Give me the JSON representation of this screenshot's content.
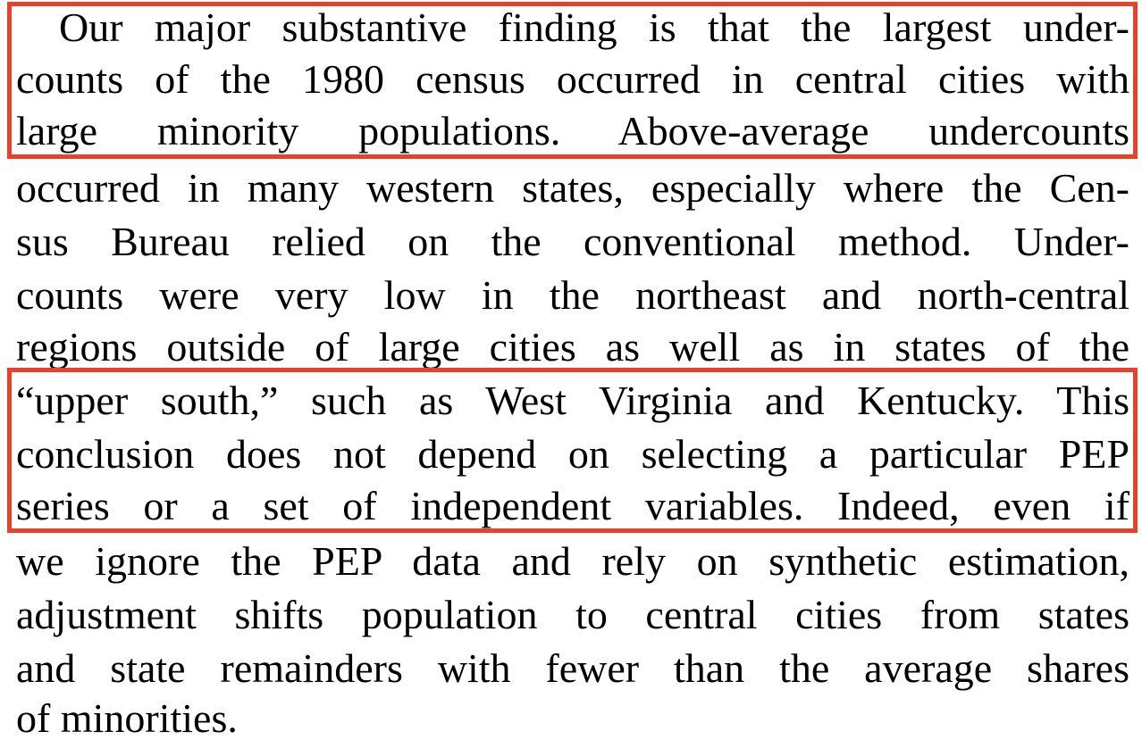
{
  "paragraph": {
    "lines": [
      "Our major substantive finding is that the largest under-",
      "counts of the 1980 census occurred in central cities with",
      "large minority populations. Above-average undercounts",
      "occurred in many western states, especially where the Cen-",
      "sus Bureau relied on the conventional method. Under-",
      "counts were very low in the northeast and north-central",
      "regions outside of large cities as well as in states of the",
      "“upper south,” such as West Virginia and Kentucky. This",
      "conclusion does not depend on selecting a particular PEP",
      "series or a set of independent variables. Indeed, even if",
      "we ignore the PEP data and rely on synthetic estimation,",
      "adjustment shifts population to central cities from states",
      "and state remainders with fewer than the average shares",
      "of minorities."
    ]
  },
  "highlights": {
    "color": "#e8412c",
    "count": 2
  }
}
